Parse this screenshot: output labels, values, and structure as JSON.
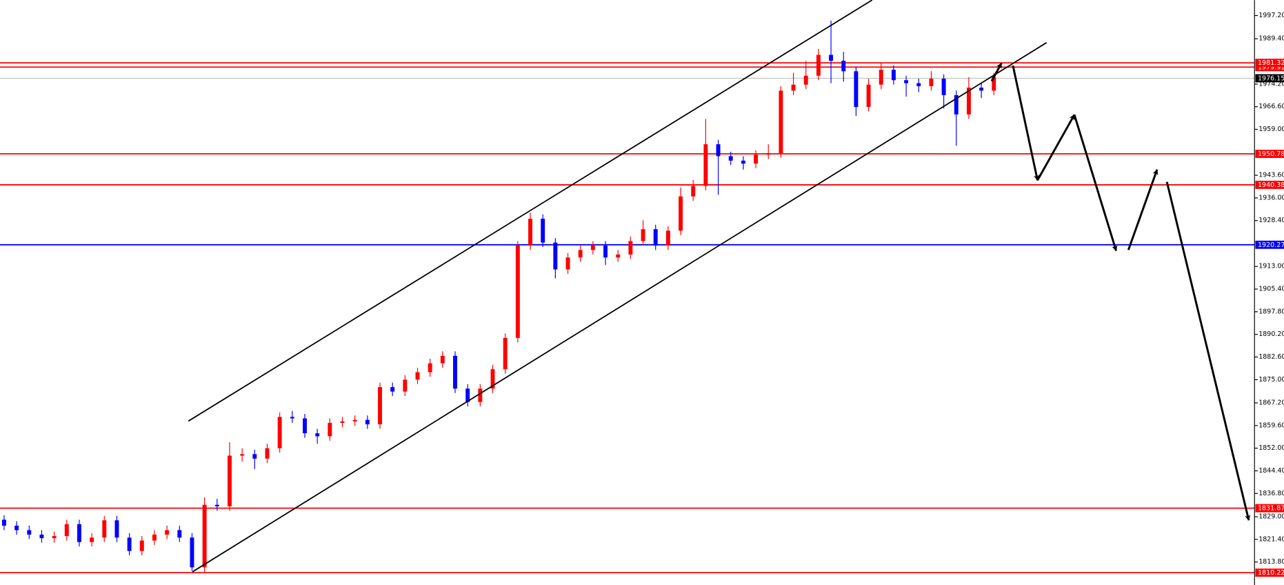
{
  "chart_data": {
    "type": "candlestick",
    "up_color": "#ff0000",
    "down_color": "#0000ff",
    "open": [
      1828.0,
      1826.0,
      1824.5,
      1823.0,
      1821.8,
      1822.5,
      1826.5,
      1820.5,
      1822.0,
      1827.8,
      1822.0,
      1817.5,
      1821.0,
      1823.0,
      1824.5,
      1822.0,
      1812.0,
      1833.0,
      1832.5,
      1849.5,
      1850.0,
      1848.5,
      1852.0,
      1862.5,
      1862.0,
      1857.0,
      1856.0,
      1860.5,
      1861.0,
      1861.5,
      1860.0,
      1872.5,
      1871.0,
      1875.0,
      1877.5,
      1880.5,
      1883.0,
      1872.0,
      1867.5,
      1872.0,
      1878.5,
      1889.0,
      1920.0,
      1929.0,
      1921.0,
      1912.0,
      1916.0,
      1918.5,
      1920.0,
      1916.0,
      1917.0,
      1921.5,
      1925.5,
      1920.0,
      1925.0,
      1936.5,
      1940.0,
      1954.0,
      1950.0,
      1948.5,
      1947.5,
      1950.5,
      1951.0,
      1972.0,
      1974.0,
      1977.0,
      1984.0,
      1982.0,
      1978.5,
      1966.5,
      1974.0,
      1979.0,
      1975.5,
      1974.5,
      1973.5,
      1976.0,
      1970.5,
      1964.0,
      1973.0,
      1972.0
    ],
    "high": [
      1829.5,
      1827.5,
      1826.0,
      1824.5,
      1824.0,
      1828.0,
      1828.0,
      1823.5,
      1829.3,
      1829.3,
      1823.5,
      1822.5,
      1824.5,
      1826.0,
      1826.0,
      1823.5,
      1835.5,
      1835.0,
      1854.0,
      1852.0,
      1851.5,
      1853.5,
      1864.0,
      1864.5,
      1863.5,
      1858.5,
      1862.0,
      1862.5,
      1863.0,
      1863.0,
      1874.0,
      1874.0,
      1876.5,
      1879.0,
      1882.0,
      1884.5,
      1884.5,
      1873.5,
      1873.5,
      1880.0,
      1890.5,
      1921.5,
      1931.0,
      1930.5,
      1922.5,
      1917.5,
      1920.0,
      1921.5,
      1921.5,
      1918.5,
      1923.0,
      1928.5,
      1927.0,
      1926.5,
      1939.5,
      1942.0,
      1962.5,
      1955.5,
      1951.5,
      1950.0,
      1952.0,
      1954.0,
      1973.5,
      1978.0,
      1982.0,
      1986.0,
      1995.5,
      1985.0,
      1980.0,
      1976.0,
      1981.5,
      1980.5,
      1977.0,
      1976.0,
      1978.5,
      1977.5,
      1972.0,
      1976.5,
      1974.5,
      1978.0
    ],
    "low": [
      1824.5,
      1823.0,
      1821.5,
      1820.3,
      1820.3,
      1821.0,
      1819.0,
      1819.0,
      1820.5,
      1820.5,
      1816.0,
      1816.0,
      1819.5,
      1821.5,
      1820.5,
      1810.8,
      1810.5,
      1831.0,
      1831.0,
      1847.5,
      1845.0,
      1847.0,
      1850.5,
      1860.5,
      1855.5,
      1853.5,
      1854.5,
      1859.0,
      1859.5,
      1858.5,
      1858.5,
      1869.5,
      1869.5,
      1873.5,
      1876.0,
      1879.0,
      1870.5,
      1866.0,
      1866.0,
      1870.5,
      1877.0,
      1887.5,
      1918.5,
      1919.5,
      1909.0,
      1910.5,
      1914.5,
      1917.0,
      1913.5,
      1914.5,
      1915.5,
      1920.0,
      1918.5,
      1918.5,
      1923.5,
      1935.0,
      1938.5,
      1937.0,
      1947.0,
      1945.5,
      1946.0,
      1949.0,
      1949.5,
      1970.5,
      1972.5,
      1975.5,
      1974.5,
      1975.0,
      1963.5,
      1965.0,
      1972.5,
      1974.0,
      1970.0,
      1971.5,
      1972.0,
      1966.0,
      1953.5,
      1962.5,
      1969.5,
      1970.5
    ],
    "close": [
      1826.0,
      1824.5,
      1823.0,
      1821.8,
      1822.5,
      1826.5,
      1820.5,
      1822.0,
      1827.8,
      1822.0,
      1817.5,
      1821.0,
      1823.0,
      1824.5,
      1822.0,
      1812.0,
      1833.0,
      1832.5,
      1849.5,
      1850.0,
      1848.5,
      1852.0,
      1862.5,
      1862.0,
      1857.0,
      1856.0,
      1860.5,
      1861.0,
      1861.5,
      1860.0,
      1872.5,
      1871.0,
      1875.0,
      1877.5,
      1880.5,
      1883.0,
      1872.0,
      1867.5,
      1872.0,
      1878.5,
      1889.0,
      1920.0,
      1929.0,
      1921.0,
      1912.0,
      1916.0,
      1918.5,
      1920.0,
      1916.0,
      1917.0,
      1921.5,
      1925.5,
      1920.0,
      1925.0,
      1936.5,
      1940.0,
      1954.0,
      1950.0,
      1948.5,
      1947.5,
      1950.5,
      1951.0,
      1972.0,
      1974.0,
      1977.0,
      1984.0,
      1982.0,
      1978.5,
      1966.5,
      1974.0,
      1979.0,
      1975.5,
      1974.5,
      1973.5,
      1976.0,
      1970.5,
      1964.0,
      1973.0,
      1972.0,
      1976.5
    ],
    "ylim": [
      1806.1,
      2002.4
    ],
    "yticks": [
      {
        "value": 1997.2,
        "label": "1997.20"
      },
      {
        "value": 1989.4,
        "label": "1989.40"
      },
      {
        "value": 1974.2,
        "label": "1974.20"
      },
      {
        "value": 1966.6,
        "label": "1966.60"
      },
      {
        "value": 1959.0,
        "label": "1959.00"
      },
      {
        "value": 1943.6,
        "label": "1943.60"
      },
      {
        "value": 1936.0,
        "label": "1936.00"
      },
      {
        "value": 1928.4,
        "label": "1928.40"
      },
      {
        "value": 1913.0,
        "label": "1913.00"
      },
      {
        "value": 1905.4,
        "label": "1905.40"
      },
      {
        "value": 1897.8,
        "label": "1897.80"
      },
      {
        "value": 1890.2,
        "label": "1890.20"
      },
      {
        "value": 1882.6,
        "label": "1882.60"
      },
      {
        "value": 1875.0,
        "label": "1875.00"
      },
      {
        "value": 1867.2,
        "label": "1867.20"
      },
      {
        "value": 1859.6,
        "label": "1859.60"
      },
      {
        "value": 1852.0,
        "label": "1852.00"
      },
      {
        "value": 1844.4,
        "label": "1844.40"
      },
      {
        "value": 1836.8,
        "label": "1836.80"
      },
      {
        "value": 1829.0,
        "label": "1829.00"
      },
      {
        "value": 1821.4,
        "label": "1821.40"
      },
      {
        "value": 1813.8,
        "label": "1813.80"
      }
    ],
    "levels": [
      {
        "value": 1979.91,
        "color": "#ff0000"
      },
      {
        "value": 1981.32,
        "color": "#ff0000"
      },
      {
        "value": 1976.15,
        "color": "#000000"
      },
      {
        "value": 1950.78,
        "color": "#ff0000"
      },
      {
        "value": 1940.38,
        "color": "#ff0000"
      },
      {
        "value": 1920.27,
        "color": "#0000ff"
      },
      {
        "value": 1831.87,
        "color": "#ff0000"
      },
      {
        "value": 1810.22,
        "color": "#ff0000"
      }
    ]
  }
}
